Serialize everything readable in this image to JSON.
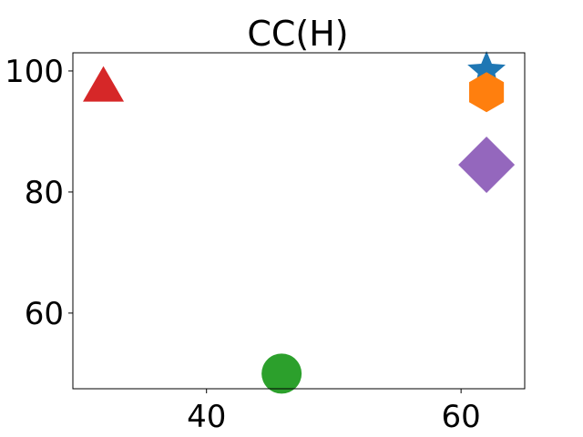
{
  "chart_data": {
    "type": "scatter",
    "title": "CC(H)",
    "xlabel": "",
    "ylabel": "",
    "xlim": [
      29.5,
      65
    ],
    "ylim": [
      47.5,
      103
    ],
    "xticks": [
      40,
      60
    ],
    "yticks": [
      60,
      80,
      100
    ],
    "grid": false,
    "points": [
      {
        "x": 62.0,
        "y": 100.0,
        "marker": "star",
        "color": "#1f77b4"
      },
      {
        "x": 62.0,
        "y": 96.5,
        "marker": "hexagon",
        "color": "#ff7f0e"
      },
      {
        "x": 45.9,
        "y": 50.0,
        "marker": "circle",
        "color": "#2ca02c"
      },
      {
        "x": 31.9,
        "y": 97.5,
        "marker": "triangle",
        "color": "#d62728"
      },
      {
        "x": 62.0,
        "y": 84.5,
        "marker": "diamond",
        "color": "#9467bd"
      }
    ]
  }
}
